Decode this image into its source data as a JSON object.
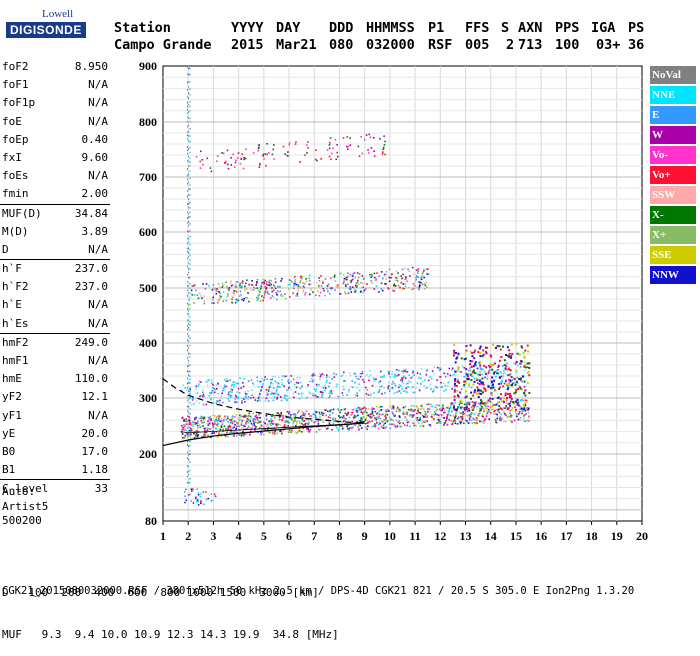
{
  "logo": {
    "line1": "Lowell",
    "line2": "DIGISONDE"
  },
  "header": {
    "row1": [
      "Station",
      "YYYY",
      "DAY",
      "DDD",
      "HHMMSS",
      "P1",
      "FFS",
      "S",
      "AXN",
      "PPS",
      "IGA",
      "PS"
    ],
    "row2": [
      "Campo Grande",
      "2015",
      "Mar21",
      "080",
      "032000",
      "RSF",
      "005",
      "2",
      "713",
      "100",
      "03+",
      "36"
    ]
  },
  "params": [
    {
      "label": "foF2",
      "value": "8.950"
    },
    {
      "label": "foF1",
      "value": "N/A"
    },
    {
      "label": "foF1p",
      "value": "N/A"
    },
    {
      "label": "foE",
      "value": "N/A"
    },
    {
      "label": "foEp",
      "value": "0.40"
    },
    {
      "label": "fxI",
      "value": "9.60"
    },
    {
      "label": "foEs",
      "value": "N/A"
    },
    {
      "label": "fmin",
      "value": "2.00"
    },
    {
      "label": "MUF(D)",
      "value": "34.84"
    },
    {
      "label": "M(D)",
      "value": "3.89"
    },
    {
      "label": "D",
      "value": "N/A"
    },
    {
      "label": "h`F",
      "value": "237.0"
    },
    {
      "label": "h`F2",
      "value": "237.0"
    },
    {
      "label": "h`E",
      "value": "N/A"
    },
    {
      "label": "h`Es",
      "value": "N/A"
    },
    {
      "label": "hmF2",
      "value": "249.0"
    },
    {
      "label": "hmF1",
      "value": "N/A"
    },
    {
      "label": "hmE",
      "value": "110.0"
    },
    {
      "label": "yF2",
      "value": "12.1"
    },
    {
      "label": "yF1",
      "value": "N/A"
    },
    {
      "label": "yE",
      "value": "20.0"
    },
    {
      "label": "B0",
      "value": "17.0"
    },
    {
      "label": "B1",
      "value": "1.18"
    },
    {
      "label": "C-level",
      "value": "33"
    }
  ],
  "auto": [
    "Auto:",
    "Artist5",
    "500200"
  ],
  "legend": [
    {
      "label": "NoVal",
      "color": "#808080"
    },
    {
      "label": "NNE",
      "color": "#00e5ff"
    },
    {
      "label": "E",
      "color": "#3399ff"
    },
    {
      "label": "W",
      "color": "#aa00aa"
    },
    {
      "label": "Vo-",
      "color": "#ff33cc"
    },
    {
      "label": "Vo+",
      "color": "#ff1133"
    },
    {
      "label": "SSW",
      "color": "#ffaaaa"
    },
    {
      "label": "X-",
      "color": "#007700"
    },
    {
      "label": "X+",
      "color": "#88bb66"
    },
    {
      "label": "SSE",
      "color": "#cccc00"
    },
    {
      "label": "NNW",
      "color": "#1111cc"
    }
  ],
  "muf_table": {
    "d_label": "D",
    "d_values": [
      "100",
      "200",
      "400",
      "600",
      "800",
      "1000",
      "1500",
      "3000"
    ],
    "d_unit": "[km]",
    "muf_label": "MUF",
    "muf_values": [
      "9.3",
      "9.4",
      "10.0",
      "10.9",
      "12.3",
      "14.3",
      "19.9",
      "34.8"
    ],
    "muf_unit": "[MHz]"
  },
  "footer": "CGK21_2015080032000.RSF / 380fx512h 50 kHz 2.5 km / DPS-4D CGK21 821 / 20.5 S 305.0 E Ion2Png 1.3.20",
  "chart_data": {
    "type": "scatter",
    "title": "",
    "xlabel": "",
    "ylabel": "",
    "xlim": [
      1,
      20
    ],
    "ylim": [
      80,
      900
    ],
    "x_ticks": [
      1,
      2,
      3,
      4,
      5,
      6,
      7,
      8,
      9,
      10,
      11,
      12,
      13,
      14,
      15,
      16,
      17,
      18,
      19,
      20
    ],
    "y_ticks": [
      80,
      200,
      300,
      400,
      500,
      600,
      700,
      800,
      900
    ],
    "grid": true,
    "legend_position": "right",
    "traces": [
      {
        "name": "F2 profile trace",
        "x": [
          1.0,
          2.0,
          3.0,
          4.0,
          5.0,
          6.0,
          7.0,
          8.0,
          8.6,
          9.0
        ],
        "y": [
          215,
          225,
          232,
          237,
          241,
          245,
          249,
          252,
          254,
          258
        ]
      },
      {
        "name": "dashed model trace",
        "x": [
          1.0,
          1.5,
          2.0,
          3.0,
          4.0,
          5.0,
          6.0,
          7.0,
          8.0,
          8.9
        ],
        "y": [
          335,
          318,
          305,
          290,
          280,
          272,
          266,
          262,
          258,
          255
        ]
      }
    ],
    "echo_bands": [
      {
        "name": "F1 echo O",
        "x": [
          1.7,
          15.5
        ],
        "y": [
          240,
          320
        ]
      },
      {
        "name": "F diffuse",
        "x": [
          1.7,
          15.5
        ],
        "y": [
          300,
          390
        ]
      },
      {
        "name": "2F echo",
        "x": [
          2.0,
          11.5
        ],
        "y": [
          480,
          560
        ]
      },
      {
        "name": "3F echo",
        "x": [
          2.3,
          9.8
        ],
        "y": [
          720,
          805
        ]
      }
    ]
  }
}
